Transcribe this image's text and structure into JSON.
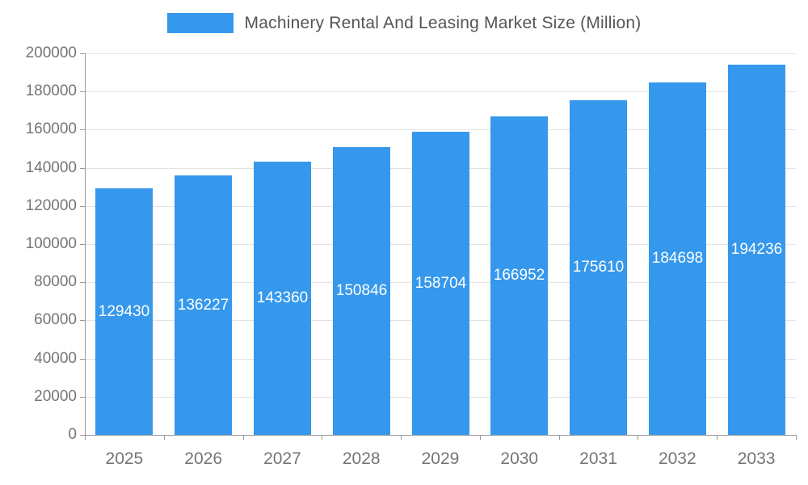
{
  "chart_data": {
    "type": "bar",
    "title": "Machinery Rental And Leasing Market Size (Million)",
    "categories": [
      "2025",
      "2026",
      "2027",
      "2028",
      "2029",
      "2030",
      "2031",
      "2032",
      "2033"
    ],
    "values": [
      129430,
      136227,
      143360,
      150846,
      158704,
      166952,
      175610,
      184698,
      194236
    ],
    "value_labels": [
      "129430",
      "136227",
      "143360",
      "150846",
      "158704",
      "166952",
      "175610",
      "184698",
      "194236"
    ],
    "ylim": [
      0,
      200000
    ],
    "yticks": [
      0,
      20000,
      40000,
      60000,
      80000,
      100000,
      120000,
      140000,
      160000,
      180000,
      200000
    ],
    "ytick_labels": [
      "0",
      "20000",
      "40000",
      "60000",
      "80000",
      "100000",
      "120000",
      "140000",
      "160000",
      "180000",
      "200000"
    ],
    "xlabel": "",
    "ylabel": "",
    "grid": true,
    "legend_position": "top",
    "bar_color": "#3598ec",
    "bar_label_color": "#ffffff",
    "axis_text_color": "#757575",
    "title_color": "#555555",
    "gridline_color": "#e3e3e3",
    "axis_line_color": "#9a9a9a"
  }
}
